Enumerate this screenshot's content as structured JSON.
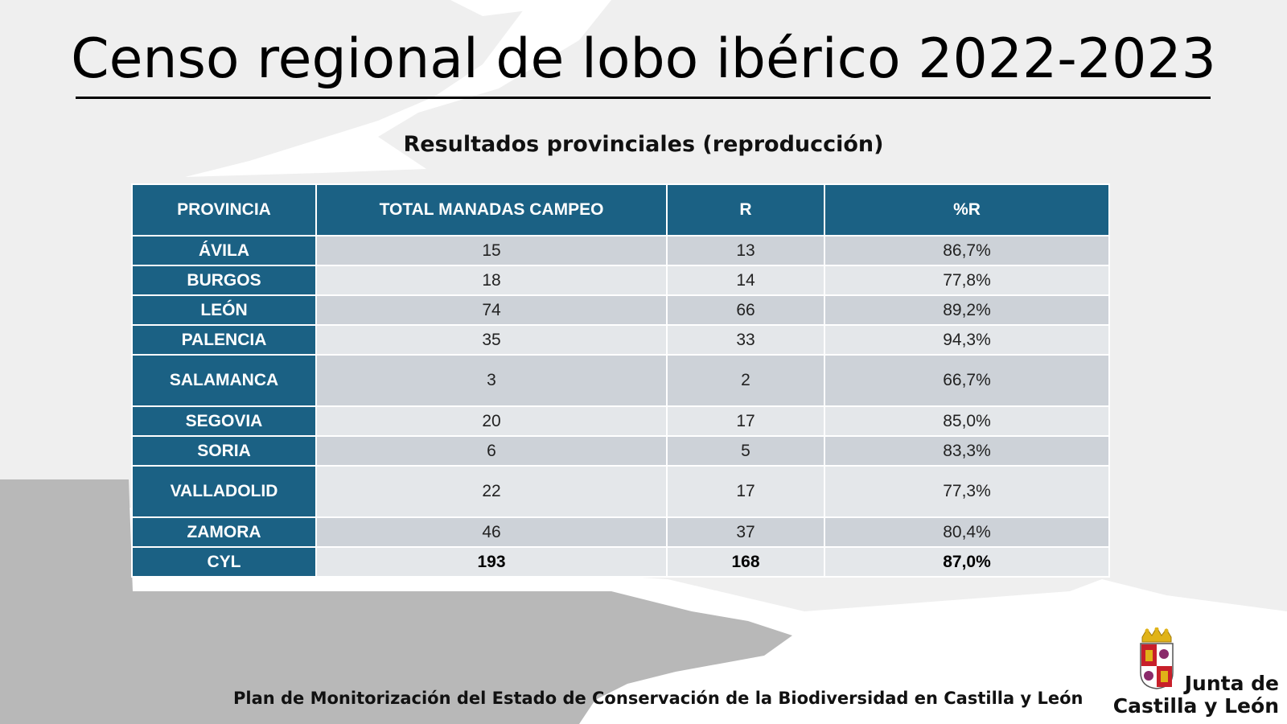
{
  "title": "Censo regional de lobo ibérico 2022-2023",
  "subtitle": "Resultados provinciales (reproducción)",
  "table": {
    "headers": [
      "PROVINCIA",
      "TOTAL MANADAS CAMPEO",
      "R",
      "%R"
    ],
    "rows": [
      [
        "ÁVILA",
        "15",
        "13",
        "86,7%"
      ],
      [
        "BURGOS",
        "18",
        "14",
        "77,8%"
      ],
      [
        "LEÓN",
        "74",
        "66",
        "89,2%"
      ],
      [
        "PALENCIA",
        "35",
        "33",
        "94,3%"
      ],
      [
        "SALAMANCA",
        "3",
        "2",
        "66,7%"
      ],
      [
        "SEGOVIA",
        "20",
        "17",
        "85,0%"
      ],
      [
        "SORIA",
        "6",
        "5",
        "83,3%"
      ],
      [
        "VALLADOLID",
        "22",
        "17",
        "77,3%"
      ],
      [
        "ZAMORA",
        "46",
        "37",
        "80,4%"
      ],
      [
        "CYL",
        "193",
        "168",
        "87,0%"
      ]
    ]
  },
  "footer": "Plan de Monitorización del Estado de Conservación de la Biodiversidad en Castilla y León",
  "logo": {
    "line1": "Junta de",
    "line2": "Castilla y León",
    "icon": "coat-of-arms-icon"
  },
  "colors": {
    "header_blue": "#1b6184",
    "row_dark": "#cdd2d8",
    "row_light": "#e4e7ea",
    "background_gray": "#b8b8b8"
  }
}
